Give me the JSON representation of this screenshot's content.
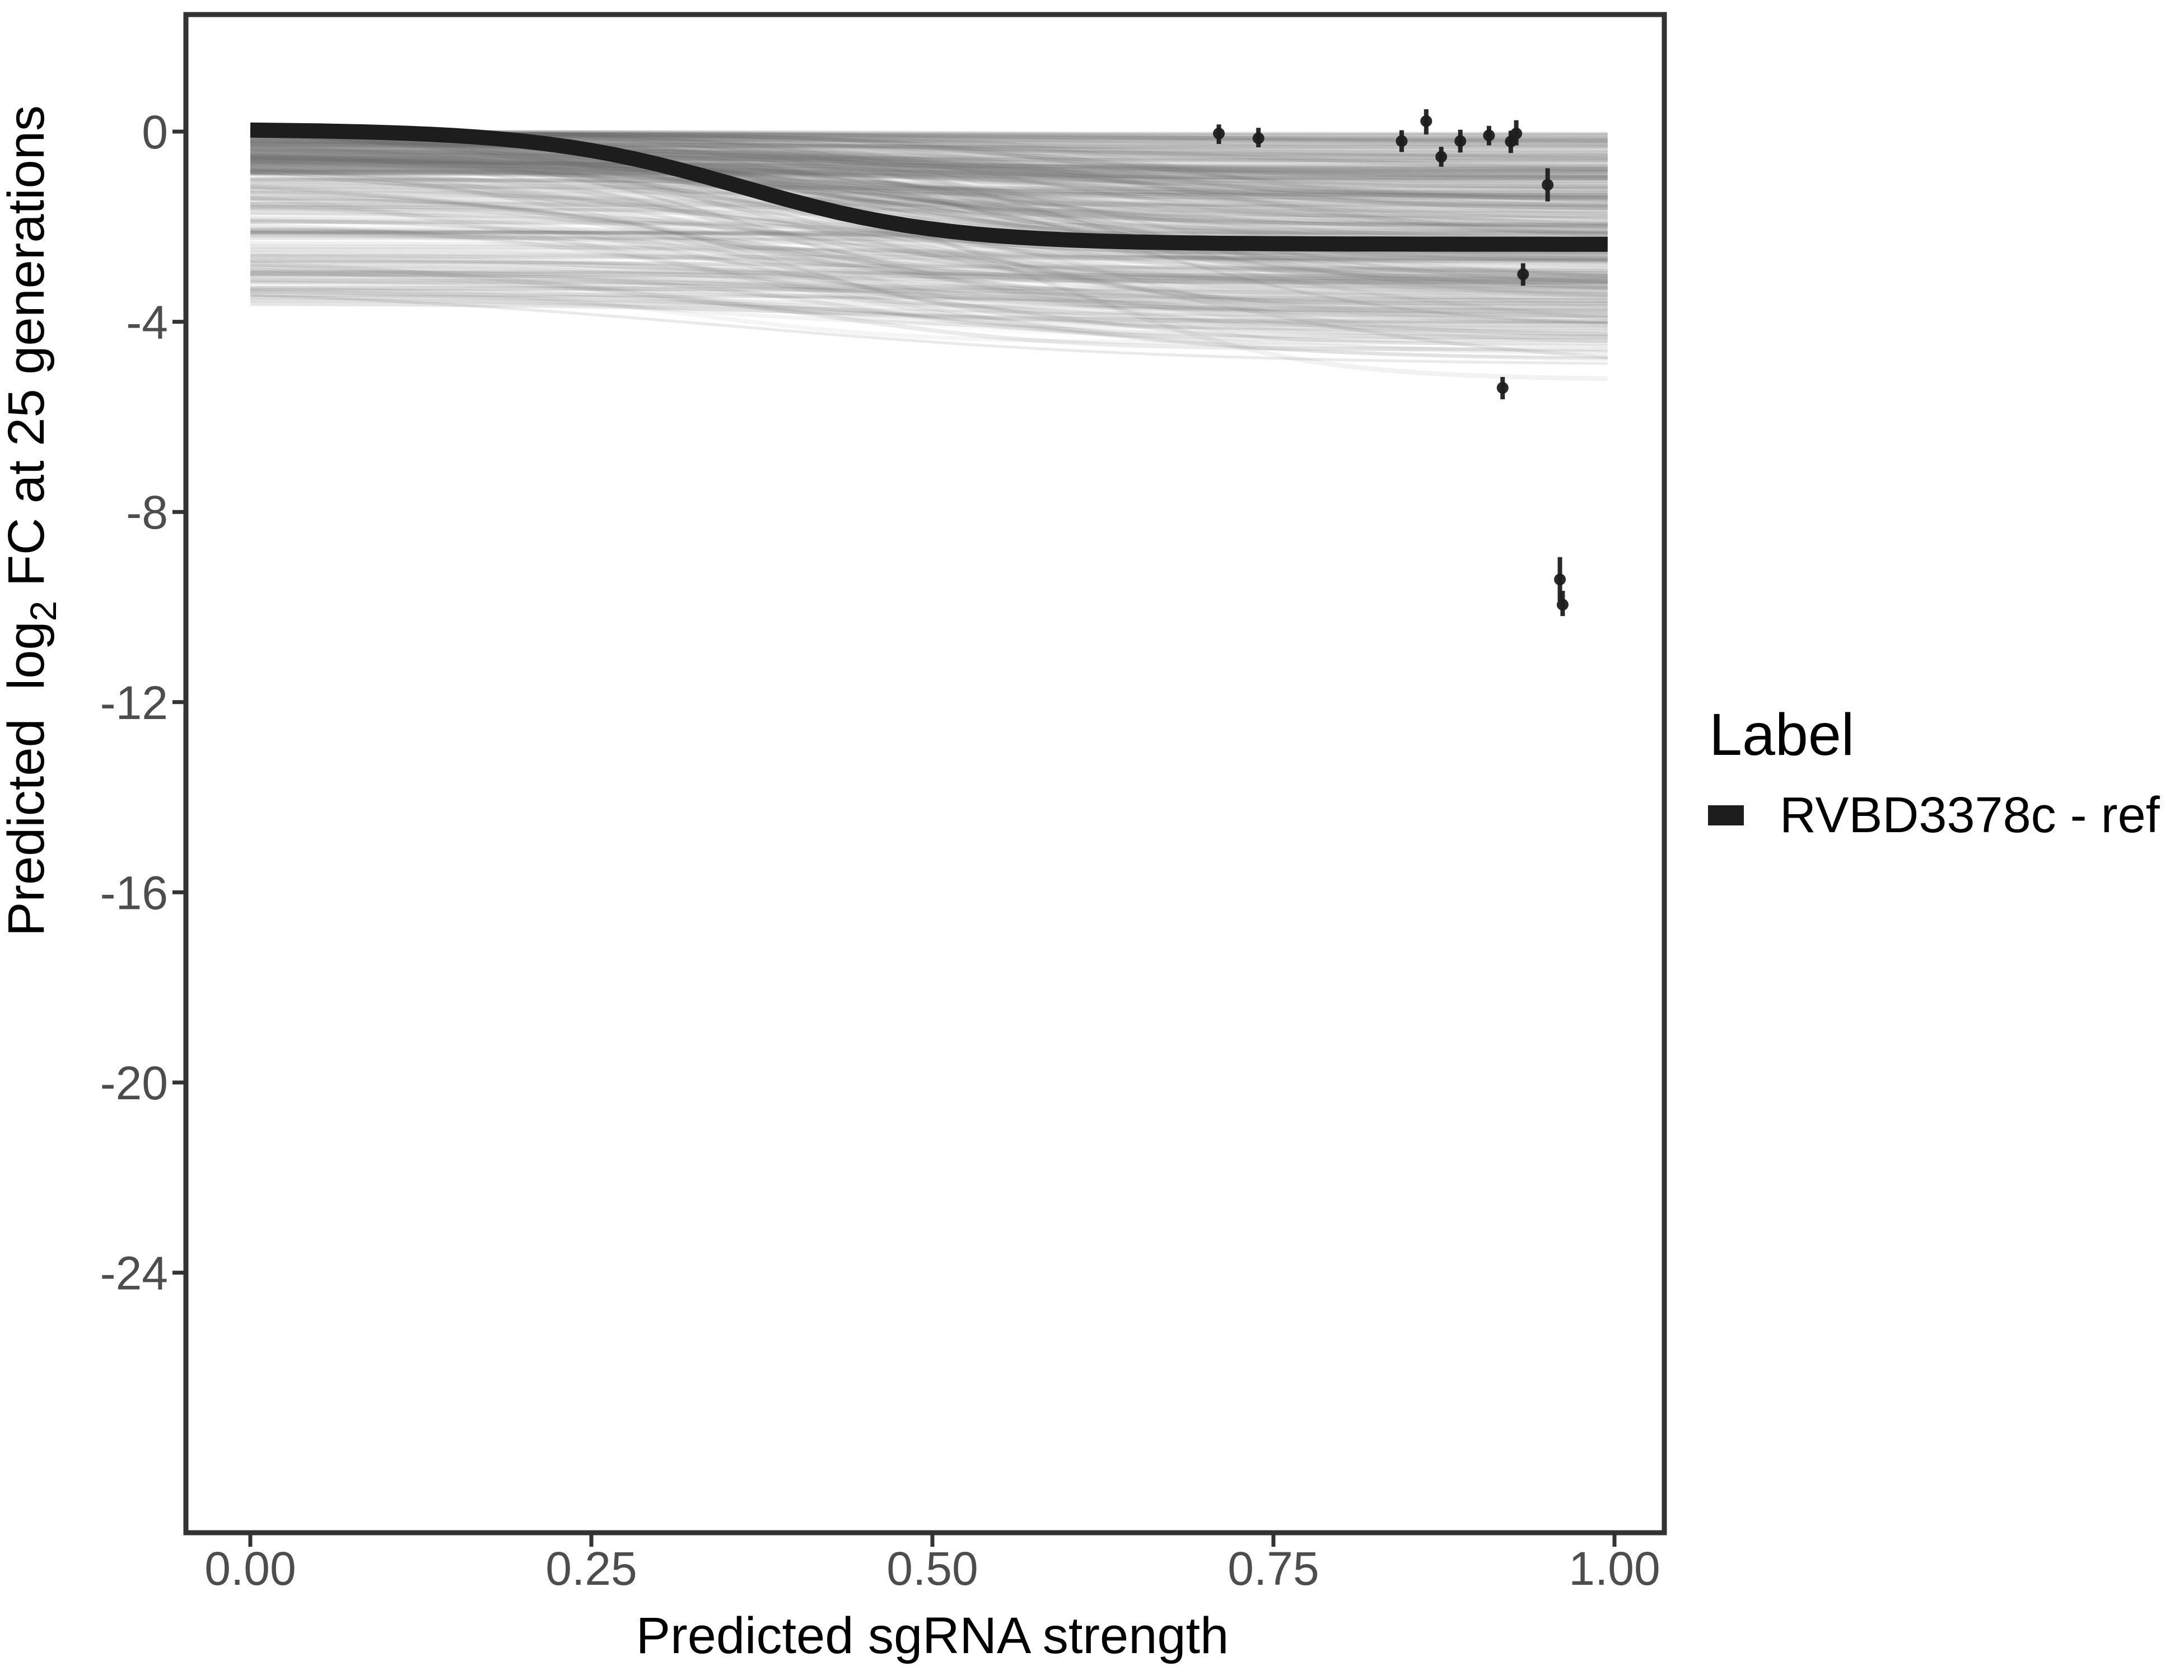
{
  "chart_data": {
    "type": "line",
    "title": "",
    "xlabel": "Predicted sgRNA strength",
    "ylabel": "Predicted log2 FC at 25 generations",
    "ylabel_parts": [
      "Predicted  log",
      "2",
      " FC at 25 generations"
    ],
    "xlim": [
      -0.047,
      1.037
    ],
    "ylim": [
      -29.4,
      2.46
    ],
    "grid": "off",
    "x_ticks": [
      "0.00",
      "0.25",
      "0.50",
      "0.75",
      "1.00"
    ],
    "x_tick_values": [
      0,
      0.25,
      0.5,
      0.75,
      1.0
    ],
    "y_ticks": [
      "0",
      "-4",
      "-8",
      "-12",
      "-16",
      "-20",
      "-24"
    ],
    "y_tick_values": [
      0,
      -4,
      -8,
      -12,
      -16,
      -20,
      -24
    ],
    "legend": {
      "title": "Label",
      "position": "right",
      "entries": [
        {
          "label": "RVBD3378c - ref",
          "color": "#1d1d1d",
          "shape": "thick-line"
        }
      ]
    },
    "ref_curve": {
      "name": "RVBD3378c - ref",
      "model": "logistic",
      "baseline": 0.05,
      "depth": -2.42,
      "steepness": 13.5,
      "midpoint": 0.36,
      "x_range": [
        0,
        0.995
      ],
      "anchor_points": {
        "x": [
          0,
          0.1,
          0.2,
          0.25,
          0.3,
          0.36,
          0.4,
          0.5,
          0.6,
          0.7,
          0.8,
          0.9,
          0.995
        ],
        "y": [
          0.03,
          -0.02,
          -0.2,
          -0.39,
          -0.69,
          -1.16,
          -1.48,
          -2.05,
          -2.28,
          -2.35,
          -2.36,
          -2.37,
          -2.37
        ]
      }
    },
    "points": [
      {
        "x": 0.71,
        "y": -0.04,
        "ymin": -0.26,
        "ymax": 0.15
      },
      {
        "x": 0.739,
        "y": -0.14,
        "ymin": -0.33,
        "ymax": 0.08
      },
      {
        "x": 0.844,
        "y": -0.2,
        "ymin": -0.43,
        "ymax": 0.03
      },
      {
        "x": 0.862,
        "y": 0.22,
        "ymin": -0.06,
        "ymax": 0.47
      },
      {
        "x": 0.873,
        "y": -0.53,
        "ymin": -0.74,
        "ymax": -0.32
      },
      {
        "x": 0.887,
        "y": -0.2,
        "ymin": -0.44,
        "ymax": 0.04
      },
      {
        "x": 0.908,
        "y": -0.08,
        "ymin": -0.29,
        "ymax": 0.12
      },
      {
        "x": 0.924,
        "y": -0.21,
        "ymin": -0.45,
        "ymax": 0.02
      },
      {
        "x": 0.928,
        "y": -0.04,
        "ymin": -0.29,
        "ymax": 0.24
      },
      {
        "x": 0.951,
        "y": -1.12,
        "ymin": -1.47,
        "ymax": -0.77
      },
      {
        "x": 0.933,
        "y": -3.0,
        "ymin": -3.24,
        "ymax": -2.77
      },
      {
        "x": 0.918,
        "y": -5.39,
        "ymin": -5.63,
        "ymax": -5.16
      },
      {
        "x": 0.96,
        "y": -9.42,
        "ymin": -9.87,
        "ymax": -8.95
      },
      {
        "x": 0.962,
        "y": -9.95,
        "ymin": -10.19,
        "ymax": -9.66
      }
    ],
    "background_lines": {
      "description": "posterior-draw sgRNA response curves",
      "count": 420,
      "seed": 42,
      "color": "#6e6e6e",
      "x_range": [
        0,
        0.995
      ],
      "start_value_range": [
        -3.7,
        0
      ],
      "end_value_min": -5.85,
      "midpoint_range": [
        0.28,
        0.7
      ],
      "steepness_range": [
        5,
        14
      ],
      "opacity_range": [
        0.035,
        0.145
      ],
      "width_range": [
        5,
        9
      ]
    }
  },
  "colors": {
    "background": "#ffffff",
    "panel_border": "#333333",
    "tick_marks": "#333333",
    "tick_labels": "#4d4d4d",
    "titles": "#000000",
    "ref_curve": "#1d1d1d",
    "points": "#1d1d1d",
    "posterior_lines": "#6e6e6e"
  }
}
